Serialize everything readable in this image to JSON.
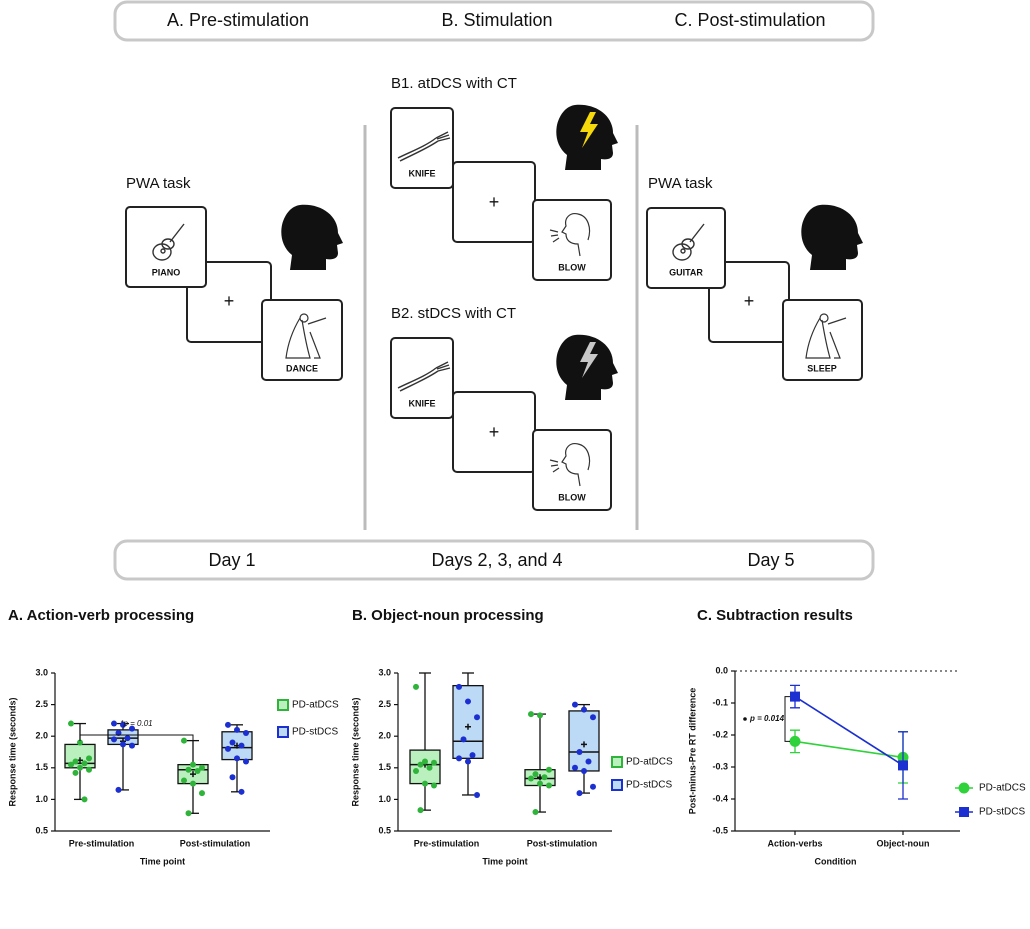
{
  "diagram": {
    "phases": [
      "A. Pre-stimulation",
      "B. Stimulation",
      "C. Post-stimulation"
    ],
    "pre": {
      "task": "PWA task",
      "cards": [
        "PIANO",
        "DANCE"
      ],
      "fixation": "+"
    },
    "b1": {
      "title": "B1. atDCS with CT",
      "cards": [
        "KNIFE",
        "BLOW"
      ],
      "fixation": "+"
    },
    "b2": {
      "title": "B2. stDCS with CT",
      "cards": [
        "KNIFE",
        "BLOW"
      ],
      "fixation": "+"
    },
    "post": {
      "task": "PWA task",
      "cards": [
        "GUITAR",
        "SLEEP"
      ],
      "fixation": "+"
    },
    "days": [
      "Day 1",
      "Days 2, 3, and 4",
      "Day 5"
    ]
  },
  "chart_data": [
    {
      "type": "box",
      "title": "A. Action-verb processing",
      "x_label": "Time point",
      "y_label": "Response time (seconds)",
      "categories": [
        "Pre-stimulation",
        "Post-stimulation"
      ],
      "ylim": [
        0.5,
        3.0
      ],
      "yticks": [
        0.5,
        {
          "value": 1.0,
          "label": "1.0"
        },
        1.5,
        {
          "value": 2.0,
          "label": "2.0"
        },
        2.5,
        {
          "value": 3.0,
          "label": "3.0"
        }
      ],
      "annotation": "*p = 0.01",
      "series": [
        {
          "name": "PD-atDCS",
          "color": "#2fb33a",
          "fill": "#b9f0bd",
          "boxes": [
            {
              "min": 1.0,
              "q1": 1.5,
              "median": 1.57,
              "q3": 1.87,
              "max": 2.2,
              "mean": 1.62,
              "points": [
                2.2,
                1.9,
                1.65,
                1.6,
                1.57,
                1.55,
                1.5,
                1.47,
                1.42,
                1.0
              ]
            },
            {
              "min": 0.78,
              "q1": 1.25,
              "median": 1.47,
              "q3": 1.55,
              "max": 1.93,
              "mean": 1.4,
              "points": [
                1.93,
                1.55,
                1.5,
                1.47,
                1.45,
                1.3,
                1.25,
                1.1,
                0.78
              ]
            }
          ]
        },
        {
          "name": "PD-stDCS",
          "color": "#1c2fd0",
          "fill": "#bcd9f6",
          "boxes": [
            {
              "min": 1.15,
              "q1": 1.87,
              "median": 1.97,
              "q3": 2.1,
              "max": 2.2,
              "mean": 1.92,
              "points": [
                2.2,
                2.18,
                2.12,
                2.05,
                1.97,
                1.95,
                1.87,
                1.85,
                1.15
              ]
            },
            {
              "min": 1.12,
              "q1": 1.63,
              "median": 1.82,
              "q3": 2.07,
              "max": 2.18,
              "mean": 1.85,
              "points": [
                2.18,
                2.1,
                2.05,
                1.9,
                1.85,
                1.8,
                1.65,
                1.6,
                1.35,
                1.12
              ]
            }
          ]
        }
      ]
    },
    {
      "type": "box",
      "title": "B. Object-noun processing",
      "x_label": "Time point",
      "y_label": "Response time (seconds)",
      "categories": [
        "Pre-stimulation",
        "Post-stimulation"
      ],
      "ylim": [
        0.5,
        3.0
      ],
      "yticks": [
        0.5,
        {
          "value": 1.0,
          "label": "1.0"
        },
        1.5,
        {
          "value": 2.0,
          "label": "2.0"
        },
        2.5,
        {
          "value": 3.0,
          "label": "3.0"
        }
      ],
      "series": [
        {
          "name": "PD-atDCS",
          "color": "#2fb33a",
          "fill": "#b9f0bd",
          "boxes": [
            {
              "min": 0.83,
              "q1": 1.25,
              "median": 1.55,
              "q3": 1.78,
              "max": 3.0,
              "mean": 1.55,
              "points": [
                2.78,
                1.6,
                1.58,
                1.55,
                1.5,
                1.45,
                1.25,
                1.22,
                0.83
              ]
            },
            {
              "min": 0.8,
              "q1": 1.22,
              "median": 1.33,
              "q3": 1.47,
              "max": 2.35,
              "mean": 1.35,
              "points": [
                2.35,
                2.33,
                1.47,
                1.4,
                1.35,
                1.33,
                1.25,
                1.22,
                0.8
              ]
            }
          ]
        },
        {
          "name": "PD-stDCS",
          "color": "#1c2fd0",
          "fill": "#bcd9f6",
          "boxes": [
            {
              "min": 1.07,
              "q1": 1.65,
              "median": 1.92,
              "q3": 2.8,
              "max": 3.0,
              "mean": 2.15,
              "points": [
                2.78,
                2.55,
                2.3,
                1.95,
                1.7,
                1.65,
                1.6,
                1.07
              ]
            },
            {
              "min": 1.1,
              "q1": 1.45,
              "median": 1.75,
              "q3": 2.4,
              "max": 2.5,
              "mean": 1.87,
              "points": [
                2.5,
                2.42,
                2.3,
                1.75,
                1.6,
                1.5,
                1.45,
                1.2,
                1.1
              ]
            }
          ]
        }
      ]
    },
    {
      "type": "line",
      "title": "C. Subtraction results",
      "x_label": "Condition",
      "y_label": "Post-minus-Pre RT difference",
      "categories": [
        "Action-verbs",
        "Object-noun"
      ],
      "ylim": [
        -0.5,
        0
      ],
      "yticks": [
        {
          "value": 0,
          "label": "0.0"
        },
        -0.1,
        -0.2,
        -0.3,
        -0.4,
        -0.5
      ],
      "annotation": "p = 0.014",
      "series": [
        {
          "name": "PD-atDCS",
          "color": "#2fd23a",
          "marker": "circle",
          "values": [
            -0.22,
            -0.27
          ],
          "errors": [
            0.035,
            0.08
          ]
        },
        {
          "name": "PD-stDCS",
          "color": "#1c2fd0",
          "marker": "square",
          "values": [
            -0.08,
            -0.295
          ],
          "errors": [
            0.035,
            0.105
          ]
        }
      ]
    }
  ]
}
